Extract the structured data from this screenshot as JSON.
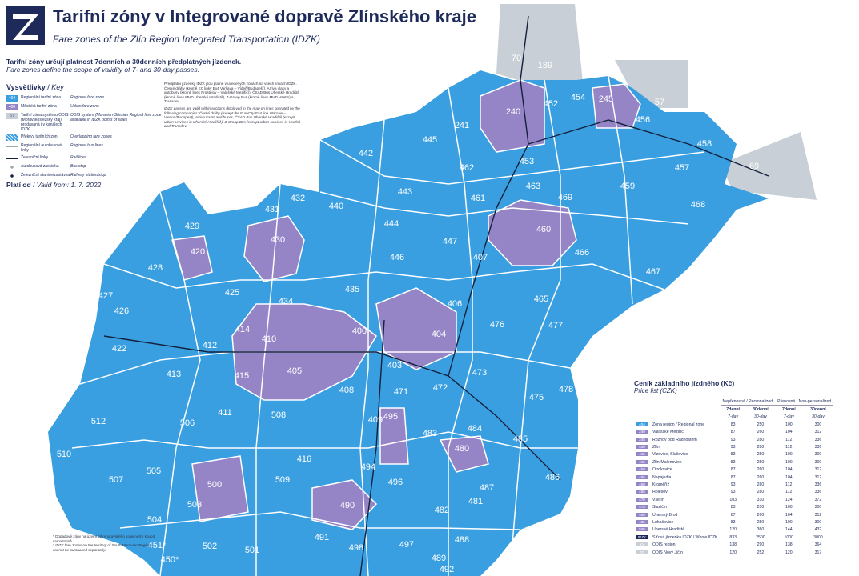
{
  "header": {
    "title": "Tarifní zóny v Integrované dopravě Zlínského kraje",
    "subtitle": "Fare zones of the Zlín Region Integrated Transportation (IDZK)"
  },
  "intro": {
    "cs": "Tarifní zóny určují platnost 7denních a 30denních předplatných jízdenek.",
    "en": "Fare zones define the scope of validity of 7- and 30-day passes."
  },
  "key": {
    "title": "Vysvětlivky",
    "title_en": "Key",
    "items": [
      {
        "swatch": "404",
        "cs": "Regionální tarifní zóna",
        "en": "Regional fare zone"
      },
      {
        "swatch": "400",
        "cs": "Městská tarifní zóna",
        "en": "Urban fare zone"
      },
      {
        "swatch": "57",
        "cs": "Tarifní zóna systému ODIS (Moravskoslezský kraj) prodávaná i v kanálech IDZK",
        "en": "ODIS system (Moravian-Silesian Region) fare zone available in IDZK points of sales"
      },
      {
        "cs": "Překryv tarifních zón",
        "en": "Overlapping fare zones"
      },
      {
        "cs": "Regionální autobusové linky",
        "en": "Regional bus lines"
      },
      {
        "cs": "Železniční linky",
        "en": "Rail lines"
      },
      {
        "cs": "Autobusová zastávka",
        "en": "Bus stop"
      },
      {
        "cs": "Železniční stanice/zastávka",
        "en": "Railway station/stop"
      }
    ]
  },
  "valid": {
    "label": "Platí od",
    "label_en": "Valid from: 1. 7. 2022"
  },
  "note": {
    "cs": "Předplatní jízdenky IDZK jsou platné v uvedených zónách na všech linkách IDZK. České dráhy (kromě EC linky Ex4 Varšava – Vídeň/Budapešť), Arriva vlaky a autobusy (kromě linek Prostějov – Valašské Meziříčí), ČSAD Bus Uherské Hradiště (kromě linek MHD Uherské Hradiště), Z-Group Bus (kromě linek MHD Vsetín) a Transdev.",
    "en": "IDZK passes are valid within sections displayed in the map on lines operated by the following companies: České dráhy (except the EuroCity Ex4 line Warsaw – Vienna/Budapest), Arriva trains and buses, ČSAD Bus Uherské Hradiště (except urban services in Uherské Hradiště), Z-Group Bus (except urban services in Vsetín) and Transdev."
  },
  "footnote": {
    "cs": "* Dopadové zóny na území Jihomoravského kraje nelze koupit samostatně.",
    "en": "* IDZK fare zones on the territory of South Moravian Region cannot be purchased separately."
  },
  "zones": [
    "70",
    "189",
    "452",
    "454",
    "245",
    "57",
    "456",
    "458",
    "457",
    "69",
    "240",
    "241",
    "445",
    "442",
    "462",
    "453",
    "463",
    "459",
    "468",
    "469",
    "461",
    "443",
    "432",
    "431",
    "440",
    "429",
    "430",
    "444",
    "447",
    "460",
    "466",
    "467",
    "420",
    "428",
    "446",
    "407",
    "425",
    "434",
    "435",
    "406",
    "465",
    "426",
    "427",
    "414",
    "410",
    "400",
    "404",
    "476",
    "477",
    "422",
    "412",
    "415",
    "405",
    "403",
    "413",
    "408",
    "471",
    "472",
    "473",
    "475",
    "478",
    "411",
    "508",
    "409",
    "495",
    "483",
    "484",
    "512",
    "506",
    "416",
    "494",
    "480",
    "485",
    "510",
    "505",
    "509",
    "496",
    "487",
    "486",
    "507",
    "500",
    "503",
    "482",
    "481",
    "504",
    "490",
    "451*",
    "502",
    "501",
    "491",
    "498",
    "497",
    "489",
    "492",
    "488",
    "450*"
  ],
  "price": {
    "title": "Ceník základního jízdného (Kč)",
    "title_en": "Price list (CZK)",
    "group1": "Nepřenosná / Personalized",
    "group2": "Přenosná / Non-personalized",
    "cols": [
      "7denní",
      "30denní",
      "7denní",
      "30denní"
    ],
    "cols_en": [
      "7-day",
      "30-day",
      "7-day",
      "30-day"
    ],
    "rows": [
      [
        "404",
        "Zóna region / Regional zone",
        83,
        250,
        100,
        300
      ],
      [
        "240",
        "Valašské Meziříčí",
        87,
        260,
        104,
        312
      ],
      [
        "245",
        "Rožnov pod Radhoštěm",
        93,
        280,
        112,
        336
      ],
      [
        "400",
        "Zlín",
        93,
        280,
        112,
        336
      ],
      [
        "410",
        "Vizovice, Slušovice",
        83,
        250,
        100,
        300
      ],
      [
        "415",
        "Zlín-Malenovice",
        83,
        250,
        100,
        300
      ],
      [
        "450",
        "Otrokovice",
        87,
        260,
        104,
        312
      ],
      [
        "455",
        "Napajedla",
        87,
        260,
        104,
        312
      ],
      [
        "460",
        "Kroměříž",
        93,
        280,
        112,
        336
      ],
      [
        "465",
        "Holešov",
        93,
        280,
        112,
        336
      ],
      [
        "470",
        "Vsetín",
        103,
        310,
        124,
        372
      ],
      [
        "475",
        "Slavičín",
        83,
        250,
        100,
        300
      ],
      [
        "480",
        "Uherský Brod",
        87,
        260,
        104,
        312
      ],
      [
        "485",
        "Luhačovice",
        83,
        250,
        100,
        300
      ],
      [
        "500",
        "Uherské Hradiště",
        120,
        360,
        144,
        432
      ],
      [
        "IDZK",
        "Síťová jízdenka IDZK / Whole IDZK",
        833,
        2500,
        1000,
        3000
      ],
      [
        "XX",
        "ODIS region",
        138,
        290,
        138,
        364
      ],
      [
        "70",
        "ODIS Nový Jičín",
        120,
        252,
        120,
        317
      ]
    ]
  }
}
